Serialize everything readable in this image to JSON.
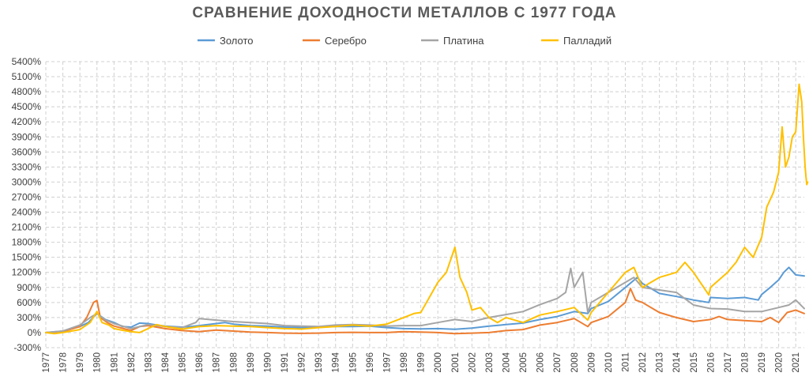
{
  "chart_data": {
    "type": "line",
    "title": "СРАВНЕНИЕ ДОХОДНОСТИ МЕТАЛЛОВ С 1977 ГОДА",
    "ylim": [
      -300,
      5400
    ],
    "yticks": [
      "-300%",
      "0%",
      "300%",
      "600%",
      "900%",
      "1200%",
      "1500%",
      "1800%",
      "2100%",
      "2400%",
      "2700%",
      "3000%",
      "3300%",
      "3600%",
      "3900%",
      "4200%",
      "4500%",
      "4800%",
      "5100%",
      "5400%"
    ],
    "ytick_values": [
      -300,
      0,
      300,
      600,
      900,
      1200,
      1500,
      1800,
      2100,
      2400,
      2700,
      3000,
      3300,
      3600,
      3900,
      4200,
      4500,
      4800,
      5100,
      5400
    ],
    "xlim": [
      1977,
      2021.5
    ],
    "xticks": [
      "1977",
      "1978",
      "1979",
      "1980",
      "1981",
      "1982",
      "1983",
      "1984",
      "1985",
      "1986",
      "1987",
      "1988",
      "1989",
      "1990",
      "1991",
      "1992",
      "1993",
      "1994",
      "1995",
      "1996",
      "1997",
      "1998",
      "1999",
      "2000",
      "2001",
      "2002",
      "2003",
      "2004",
      "2005",
      "2006",
      "2007",
      "2008",
      "2009",
      "2010",
      "2011",
      "2012",
      "2013",
      "2014",
      "2015",
      "2016",
      "2017",
      "2018",
      "2019",
      "2020",
      "2021"
    ],
    "xtick_values": [
      1977,
      1978,
      1979,
      1980,
      1981,
      1982,
      1983,
      1984,
      1985,
      1986,
      1987,
      1988,
      1989,
      1990,
      1991,
      1992,
      1993,
      1994,
      1995,
      1996,
      1997,
      1998,
      1999,
      2000,
      2001,
      2002,
      2003,
      2004,
      2005,
      2006,
      2007,
      2008,
      2009,
      2010,
      2011,
      2012,
      2013,
      2014,
      2015,
      2016,
      2017,
      2018,
      2019,
      2020,
      2021
    ],
    "grid": true,
    "legend_position": "top",
    "series": [
      {
        "name": "Золото",
        "color": "#5b9bd5",
        "points": [
          [
            1977,
            0
          ],
          [
            1978,
            30
          ],
          [
            1979,
            120
          ],
          [
            1979.5,
            200
          ],
          [
            1980,
            380
          ],
          [
            1980.5,
            260
          ],
          [
            1981,
            200
          ],
          [
            1981.5,
            120
          ],
          [
            1982,
            110
          ],
          [
            1982.5,
            190
          ],
          [
            1983,
            180
          ],
          [
            1983.5,
            150
          ],
          [
            1984,
            130
          ],
          [
            1985,
            110
          ],
          [
            1985.5,
            120
          ],
          [
            1986,
            140
          ],
          [
            1987,
            180
          ],
          [
            1987.5,
            200
          ],
          [
            1988,
            170
          ],
          [
            1989,
            140
          ],
          [
            1990,
            130
          ],
          [
            1991,
            110
          ],
          [
            1992,
            100
          ],
          [
            1993,
            110
          ],
          [
            1994,
            120
          ],
          [
            1995,
            120
          ],
          [
            1996,
            130
          ],
          [
            1997,
            100
          ],
          [
            1998,
            80
          ],
          [
            1999,
            75
          ],
          [
            2000,
            80
          ],
          [
            2001,
            65
          ],
          [
            2002,
            90
          ],
          [
            2003,
            130
          ],
          [
            2004,
            160
          ],
          [
            2005,
            190
          ],
          [
            2006,
            260
          ],
          [
            2007,
            320
          ],
          [
            2008,
            420
          ],
          [
            2008.8,
            380
          ],
          [
            2009,
            480
          ],
          [
            2010,
            620
          ],
          [
            2011,
            900
          ],
          [
            2011.7,
            1100
          ],
          [
            2012,
            980
          ],
          [
            2013,
            780
          ],
          [
            2014,
            720
          ],
          [
            2015,
            650
          ],
          [
            2015.9,
            600
          ],
          [
            2016,
            700
          ],
          [
            2017,
            680
          ],
          [
            2018,
            700
          ],
          [
            2018.8,
            650
          ],
          [
            2019,
            760
          ],
          [
            2019.5,
            900
          ],
          [
            2020,
            1050
          ],
          [
            2020.3,
            1200
          ],
          [
            2020.6,
            1300
          ],
          [
            2021,
            1150
          ],
          [
            2021.5,
            1130
          ]
        ]
      },
      {
        "name": "Серебро",
        "color": "#ed7d31",
        "points": [
          [
            1977,
            0
          ],
          [
            1978,
            20
          ],
          [
            1979,
            120
          ],
          [
            1979.4,
            300
          ],
          [
            1979.8,
            600
          ],
          [
            1980,
            640
          ],
          [
            1980.2,
            300
          ],
          [
            1980.6,
            200
          ],
          [
            1981,
            130
          ],
          [
            1982,
            40
          ],
          [
            1982.5,
            120
          ],
          [
            1983,
            140
          ],
          [
            1984,
            80
          ],
          [
            1985,
            40
          ],
          [
            1986,
            20
          ],
          [
            1987,
            50
          ],
          [
            1988,
            30
          ],
          [
            1989,
            10
          ],
          [
            1990,
            0
          ],
          [
            1991,
            -10
          ],
          [
            1992,
            -15
          ],
          [
            1993,
            -10
          ],
          [
            1994,
            0
          ],
          [
            1995,
            5
          ],
          [
            1996,
            0
          ],
          [
            1997,
            0
          ],
          [
            1998,
            20
          ],
          [
            1999,
            10
          ],
          [
            2000,
            0
          ],
          [
            2001,
            -20
          ],
          [
            2002,
            -10
          ],
          [
            2003,
            0
          ],
          [
            2004,
            40
          ],
          [
            2005,
            60
          ],
          [
            2006,
            150
          ],
          [
            2007,
            200
          ],
          [
            2008,
            280
          ],
          [
            2008.8,
            120
          ],
          [
            2009,
            200
          ],
          [
            2010,
            320
          ],
          [
            2011,
            600
          ],
          [
            2011.3,
            880
          ],
          [
            2011.6,
            650
          ],
          [
            2012,
            600
          ],
          [
            2013,
            400
          ],
          [
            2014,
            300
          ],
          [
            2015,
            220
          ],
          [
            2016,
            260
          ],
          [
            2016.5,
            320
          ],
          [
            2017,
            260
          ],
          [
            2018,
            240
          ],
          [
            2019,
            220
          ],
          [
            2019.5,
            300
          ],
          [
            2020,
            200
          ],
          [
            2020.5,
            400
          ],
          [
            2021,
            450
          ],
          [
            2021.5,
            380
          ]
        ]
      },
      {
        "name": "Платина",
        "color": "#a5a5a5",
        "points": [
          [
            1977,
            0
          ],
          [
            1978,
            30
          ],
          [
            1979,
            150
          ],
          [
            1979.6,
            300
          ],
          [
            1980,
            380
          ],
          [
            1980.5,
            250
          ],
          [
            1981,
            180
          ],
          [
            1982,
            80
          ],
          [
            1983,
            160
          ],
          [
            1984,
            120
          ],
          [
            1985,
            100
          ],
          [
            1985.8,
            200
          ],
          [
            1986,
            280
          ],
          [
            1987,
            250
          ],
          [
            1988,
            220
          ],
          [
            1989,
            200
          ],
          [
            1990,
            180
          ],
          [
            1991,
            140
          ],
          [
            1992,
            130
          ],
          [
            1993,
            120
          ],
          [
            1994,
            150
          ],
          [
            1995,
            160
          ],
          [
            1996,
            150
          ],
          [
            1997,
            130
          ],
          [
            1998,
            140
          ],
          [
            1999,
            140
          ],
          [
            2000,
            200
          ],
          [
            2001,
            260
          ],
          [
            2002,
            220
          ],
          [
            2003,
            300
          ],
          [
            2004,
            360
          ],
          [
            2005,
            420
          ],
          [
            2006,
            560
          ],
          [
            2007,
            680
          ],
          [
            2007.5,
            800
          ],
          [
            2007.8,
            1280
          ],
          [
            2008,
            900
          ],
          [
            2008.5,
            1200
          ],
          [
            2008.8,
            400
          ],
          [
            2009,
            600
          ],
          [
            2010,
            800
          ],
          [
            2011,
            1000
          ],
          [
            2011.5,
            1100
          ],
          [
            2012,
            900
          ],
          [
            2013,
            850
          ],
          [
            2014,
            800
          ],
          [
            2015,
            550
          ],
          [
            2016,
            480
          ],
          [
            2017,
            470
          ],
          [
            2018,
            420
          ],
          [
            2019,
            420
          ],
          [
            2020,
            500
          ],
          [
            2020.6,
            550
          ],
          [
            2021,
            650
          ],
          [
            2021.5,
            480
          ]
        ]
      },
      {
        "name": "Палладий",
        "color": "#ffc000",
        "points": [
          [
            1977,
            0
          ],
          [
            1977.5,
            -20
          ],
          [
            1978,
            0
          ],
          [
            1979,
            60
          ],
          [
            1979.6,
            200
          ],
          [
            1980,
            420
          ],
          [
            1980.3,
            200
          ],
          [
            1980.7,
            150
          ],
          [
            1981,
            80
          ],
          [
            1981.6,
            40
          ],
          [
            1982,
            20
          ],
          [
            1982.5,
            0
          ],
          [
            1983,
            80
          ],
          [
            1983.5,
            160
          ],
          [
            1984,
            120
          ],
          [
            1985,
            70
          ],
          [
            1986,
            120
          ],
          [
            1987,
            140
          ],
          [
            1988,
            130
          ],
          [
            1989,
            120
          ],
          [
            1990,
            100
          ],
          [
            1991,
            80
          ],
          [
            1992,
            70
          ],
          [
            1993,
            100
          ],
          [
            1994,
            120
          ],
          [
            1995,
            150
          ],
          [
            1996,
            130
          ],
          [
            1997,
            170
          ],
          [
            1998,
            300
          ],
          [
            1998.6,
            380
          ],
          [
            1999,
            400
          ],
          [
            1999.5,
            700
          ],
          [
            2000,
            1000
          ],
          [
            2000.5,
            1200
          ],
          [
            2001,
            1700
          ],
          [
            2001.3,
            1100
          ],
          [
            2001.7,
            800
          ],
          [
            2002,
            450
          ],
          [
            2002.5,
            500
          ],
          [
            2003,
            300
          ],
          [
            2003.5,
            200
          ],
          [
            2004,
            300
          ],
          [
            2005,
            200
          ],
          [
            2006,
            350
          ],
          [
            2007,
            420
          ],
          [
            2008,
            500
          ],
          [
            2008.8,
            250
          ],
          [
            2009,
            400
          ],
          [
            2010,
            800
          ],
          [
            2011,
            1200
          ],
          [
            2011.5,
            1300
          ],
          [
            2012,
            900
          ],
          [
            2012.5,
            1000
          ],
          [
            2013,
            1100
          ],
          [
            2014,
            1200
          ],
          [
            2014.5,
            1400
          ],
          [
            2015,
            1200
          ],
          [
            2015.9,
            750
          ],
          [
            2016,
            900
          ],
          [
            2017,
            1200
          ],
          [
            2017.5,
            1400
          ],
          [
            2018,
            1700
          ],
          [
            2018.5,
            1500
          ],
          [
            2019,
            1900
          ],
          [
            2019.3,
            2500
          ],
          [
            2019.7,
            2800
          ],
          [
            2020,
            3200
          ],
          [
            2020.2,
            4100
          ],
          [
            2020.4,
            3300
          ],
          [
            2020.6,
            3500
          ],
          [
            2020.8,
            3900
          ],
          [
            2021,
            4000
          ],
          [
            2021.2,
            4950
          ],
          [
            2021.35,
            4600
          ],
          [
            2021.45,
            3900
          ],
          [
            2021.55,
            3300
          ],
          [
            2021.6,
            3100
          ],
          [
            2021.65,
            2950
          ],
          [
            2021.7,
            3000
          ]
        ]
      }
    ]
  }
}
